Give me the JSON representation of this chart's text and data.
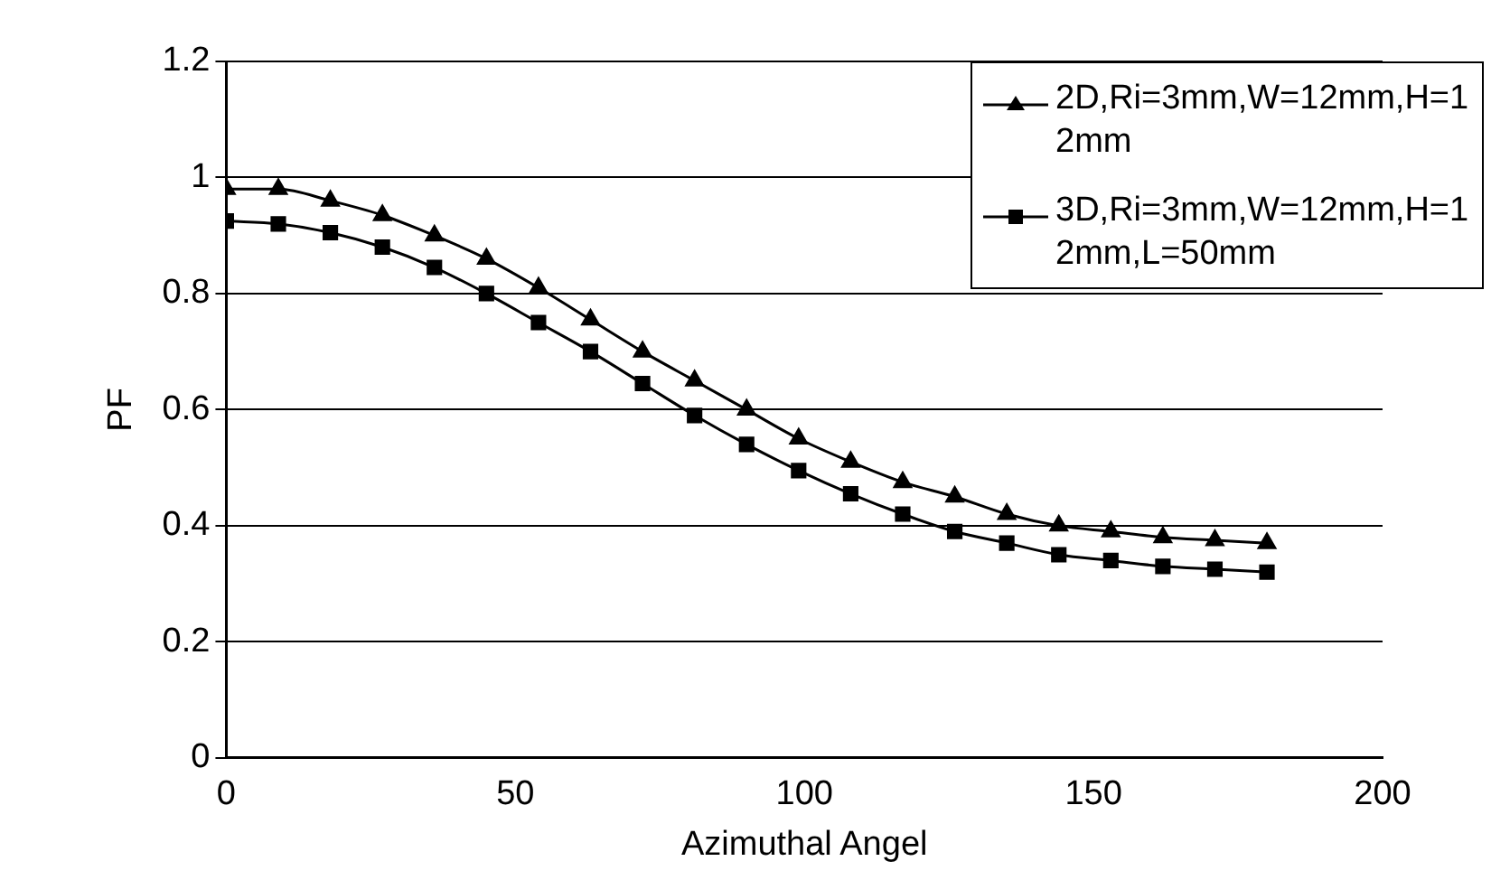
{
  "chart_data": {
    "type": "line",
    "xlabel": "Azimuthal Angel",
    "ylabel": "PF",
    "x": [
      0,
      9,
      18,
      27,
      36,
      45,
      54,
      63,
      72,
      81,
      90,
      99,
      108,
      117,
      126,
      135,
      144,
      153,
      162,
      171,
      180
    ],
    "series": [
      {
        "name": "2D,Ri=3mm,W=12mm,H=12mm",
        "color": "#000000",
        "marker": "triangle",
        "values": [
          0.98,
          0.98,
          0.96,
          0.935,
          0.9,
          0.86,
          0.81,
          0.755,
          0.7,
          0.65,
          0.6,
          0.55,
          0.51,
          0.475,
          0.45,
          0.42,
          0.4,
          0.39,
          0.38,
          0.375,
          0.37
        ]
      },
      {
        "name": "3D,Ri=3mm,W=12mm,H=12mm,L=50mm",
        "color": "#000000",
        "marker": "square",
        "values": [
          0.925,
          0.92,
          0.905,
          0.88,
          0.845,
          0.8,
          0.75,
          0.7,
          0.645,
          0.59,
          0.54,
          0.495,
          0.455,
          0.42,
          0.39,
          0.37,
          0.35,
          0.34,
          0.33,
          0.325,
          0.32
        ]
      }
    ],
    "xlim": [
      0,
      200
    ],
    "xticks": [
      0,
      50,
      100,
      150,
      200
    ],
    "ylim": [
      0,
      1.2
    ],
    "yticks": [
      0,
      0.2,
      0.4,
      0.6,
      0.8,
      1,
      1.2
    ],
    "grid": "y",
    "legend": "top right",
    "line_style": "solid"
  }
}
